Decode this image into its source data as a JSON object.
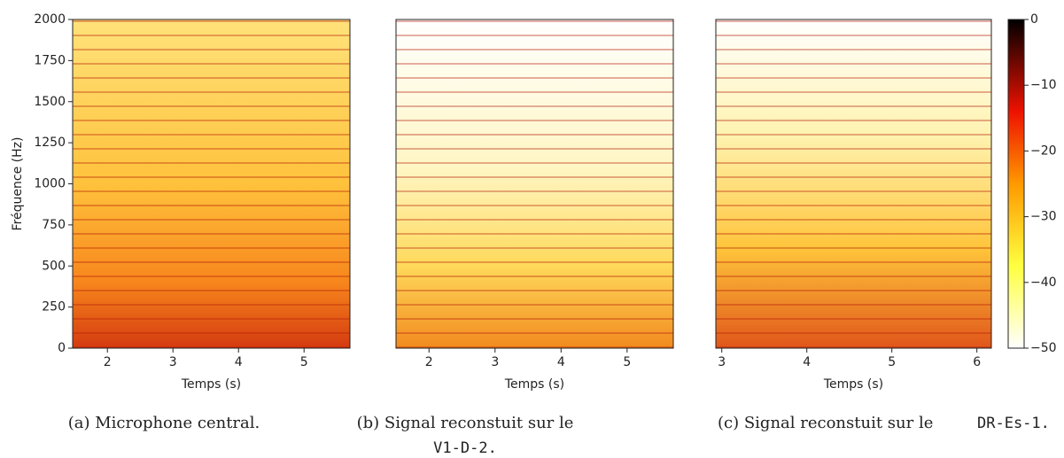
{
  "chart_data": [
    {
      "type": "spectrogram",
      "xlabel": "Temps (s)",
      "ylabel": "Fréquence (Hz)",
      "xlim": [
        1.47,
        5.7
      ],
      "xticks": [
        2,
        3,
        4,
        5
      ],
      "ylim": [
        0,
        2000
      ],
      "yticks": [
        0,
        250,
        500,
        750,
        1000,
        1250,
        1500,
        1750,
        2000
      ],
      "caption": "(a) Microphone central."
    },
    {
      "type": "spectrogram",
      "xlabel": "Temps (s)",
      "xlim": [
        1.5,
        5.7
      ],
      "xticks": [
        2,
        3,
        4,
        5
      ],
      "ylim": [
        0,
        2000
      ],
      "caption": "(b) Signal reconstuit sur le",
      "caption_code": "V1-D-2."
    },
    {
      "type": "spectrogram",
      "xlabel": "Temps (s)",
      "xlim": [
        2.93,
        6.17
      ],
      "xticks": [
        3,
        4,
        5,
        6
      ],
      "ylim": [
        0,
        2000
      ],
      "caption": "(c) Signal reconstuit sur le",
      "caption_code": "DR-Es-1."
    },
    {
      "type": "colorbar",
      "ylim": [
        -50,
        0
      ],
      "yticks": [
        0,
        {
          "value": -10,
          "label": "−10"
        },
        {
          "value": -20,
          "label": "−20"
        },
        {
          "value": -30,
          "label": "−30"
        },
        {
          "value": -40,
          "label": "−40"
        },
        {
          "value": -50,
          "label": "−50"
        }
      ]
    }
  ]
}
